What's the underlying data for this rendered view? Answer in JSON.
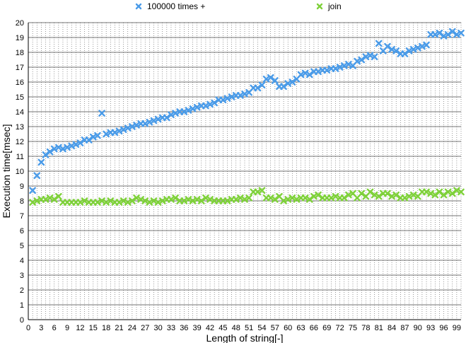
{
  "chart_data": {
    "type": "scatter",
    "xlabel": "Length of string[-]",
    "ylabel": "Execution time[msec]",
    "xlim": [
      0,
      100
    ],
    "ylim": [
      0,
      20
    ],
    "x_ticks": [
      "0",
      "3",
      "6",
      "9",
      "12",
      "15",
      "18",
      "21",
      "24",
      "27",
      "30",
      "33",
      "36",
      "39",
      "42",
      "45",
      "48",
      "51",
      "54",
      "57",
      "60",
      "63",
      "66",
      "69",
      "72",
      "75",
      "78",
      "81",
      "84",
      "87",
      "90",
      "93",
      "96",
      "99"
    ],
    "y_ticks": [
      "0",
      "1",
      "2",
      "3",
      "4",
      "5",
      "6",
      "7",
      "8",
      "9",
      "10",
      "11",
      "12",
      "13",
      "14",
      "15",
      "16",
      "17",
      "18",
      "19",
      "20"
    ],
    "grid": true,
    "legend_position": "top",
    "series": [
      {
        "name": "100000 times +",
        "color": "#4a9be8",
        "marker": "x",
        "x": [
          1,
          2,
          3,
          4,
          5,
          6,
          7,
          8,
          9,
          10,
          11,
          12,
          13,
          14,
          15,
          16,
          17,
          18,
          19,
          20,
          21,
          22,
          23,
          24,
          25,
          26,
          27,
          28,
          29,
          30,
          31,
          32,
          33,
          34,
          35,
          36,
          37,
          38,
          39,
          40,
          41,
          42,
          43,
          44,
          45,
          46,
          47,
          48,
          49,
          50,
          51,
          52,
          53,
          54,
          55,
          56,
          57,
          58,
          59,
          60,
          61,
          62,
          63,
          64,
          65,
          66,
          67,
          68,
          69,
          70,
          71,
          72,
          73,
          74,
          75,
          76,
          77,
          78,
          79,
          80,
          81,
          82,
          83,
          84,
          85,
          86,
          87,
          88,
          89,
          90,
          91,
          92,
          93,
          94,
          95,
          96,
          97,
          98,
          99,
          100
        ],
        "values": [
          8.7,
          9.7,
          10.6,
          11.1,
          11.3,
          11.5,
          11.6,
          11.5,
          11.6,
          11.7,
          11.8,
          11.9,
          12.1,
          12.1,
          12.3,
          12.4,
          13.9,
          12.5,
          12.6,
          12.6,
          12.7,
          12.8,
          12.9,
          13.0,
          13.1,
          13.2,
          13.2,
          13.3,
          13.4,
          13.5,
          13.6,
          13.6,
          13.8,
          13.9,
          14.0,
          14.0,
          14.1,
          14.2,
          14.3,
          14.4,
          14.4,
          14.5,
          14.6,
          14.8,
          14.8,
          14.9,
          15.0,
          15.1,
          15.1,
          15.2,
          15.3,
          15.6,
          15.6,
          15.8,
          16.2,
          16.3,
          16.1,
          15.7,
          15.7,
          15.9,
          16.0,
          16.2,
          16.5,
          16.6,
          16.5,
          16.7,
          16.7,
          16.8,
          16.8,
          16.9,
          16.9,
          17.0,
          17.1,
          17.2,
          17.1,
          17.4,
          17.5,
          17.7,
          17.8,
          17.7,
          18.6,
          18.1,
          18.4,
          18.2,
          18.1,
          17.9,
          17.9,
          18.1,
          18.2,
          18.3,
          18.4,
          18.5,
          19.2,
          19.2,
          19.3,
          19.1,
          19.2,
          19.4,
          19.2,
          19.3
        ]
      },
      {
        "name": "join",
        "color": "#7fd13b",
        "marker": "x",
        "x": [
          1,
          2,
          3,
          4,
          5,
          6,
          7,
          8,
          9,
          10,
          11,
          12,
          13,
          14,
          15,
          16,
          17,
          18,
          19,
          20,
          21,
          22,
          23,
          24,
          25,
          26,
          27,
          28,
          29,
          30,
          31,
          32,
          33,
          34,
          35,
          36,
          37,
          38,
          39,
          40,
          41,
          42,
          43,
          44,
          45,
          46,
          47,
          48,
          49,
          50,
          51,
          52,
          53,
          54,
          55,
          56,
          57,
          58,
          59,
          60,
          61,
          62,
          63,
          64,
          65,
          66,
          67,
          68,
          69,
          70,
          71,
          72,
          73,
          74,
          75,
          76,
          77,
          78,
          79,
          80,
          81,
          82,
          83,
          84,
          85,
          86,
          87,
          88,
          89,
          90,
          91,
          92,
          93,
          94,
          95,
          96,
          97,
          98,
          99,
          100
        ],
        "values": [
          7.9,
          8.0,
          8.1,
          8.1,
          8.2,
          8.1,
          8.3,
          7.9,
          7.9,
          7.9,
          7.9,
          7.9,
          8.0,
          7.9,
          7.9,
          7.9,
          8.0,
          7.9,
          8.0,
          7.9,
          7.9,
          8.0,
          7.9,
          8.0,
          8.2,
          8.1,
          8.0,
          7.9,
          8.0,
          7.9,
          8.0,
          8.1,
          8.1,
          8.2,
          8.0,
          8.0,
          8.1,
          8.0,
          8.1,
          8.0,
          8.2,
          8.1,
          8.0,
          8.0,
          8.0,
          8.0,
          8.1,
          8.1,
          8.2,
          8.1,
          8.2,
          8.6,
          8.6,
          8.7,
          8.2,
          8.2,
          8.1,
          8.3,
          8.0,
          8.1,
          8.2,
          8.1,
          8.2,
          8.2,
          8.1,
          8.3,
          8.4,
          8.2,
          8.2,
          8.2,
          8.3,
          8.2,
          8.2,
          8.4,
          8.5,
          8.2,
          8.5,
          8.3,
          8.6,
          8.4,
          8.3,
          8.5,
          8.5,
          8.3,
          8.4,
          8.2,
          8.2,
          8.3,
          8.4,
          8.3,
          8.6,
          8.6,
          8.5,
          8.4,
          8.6,
          8.4,
          8.6,
          8.5,
          8.7,
          8.6
        ]
      }
    ]
  }
}
